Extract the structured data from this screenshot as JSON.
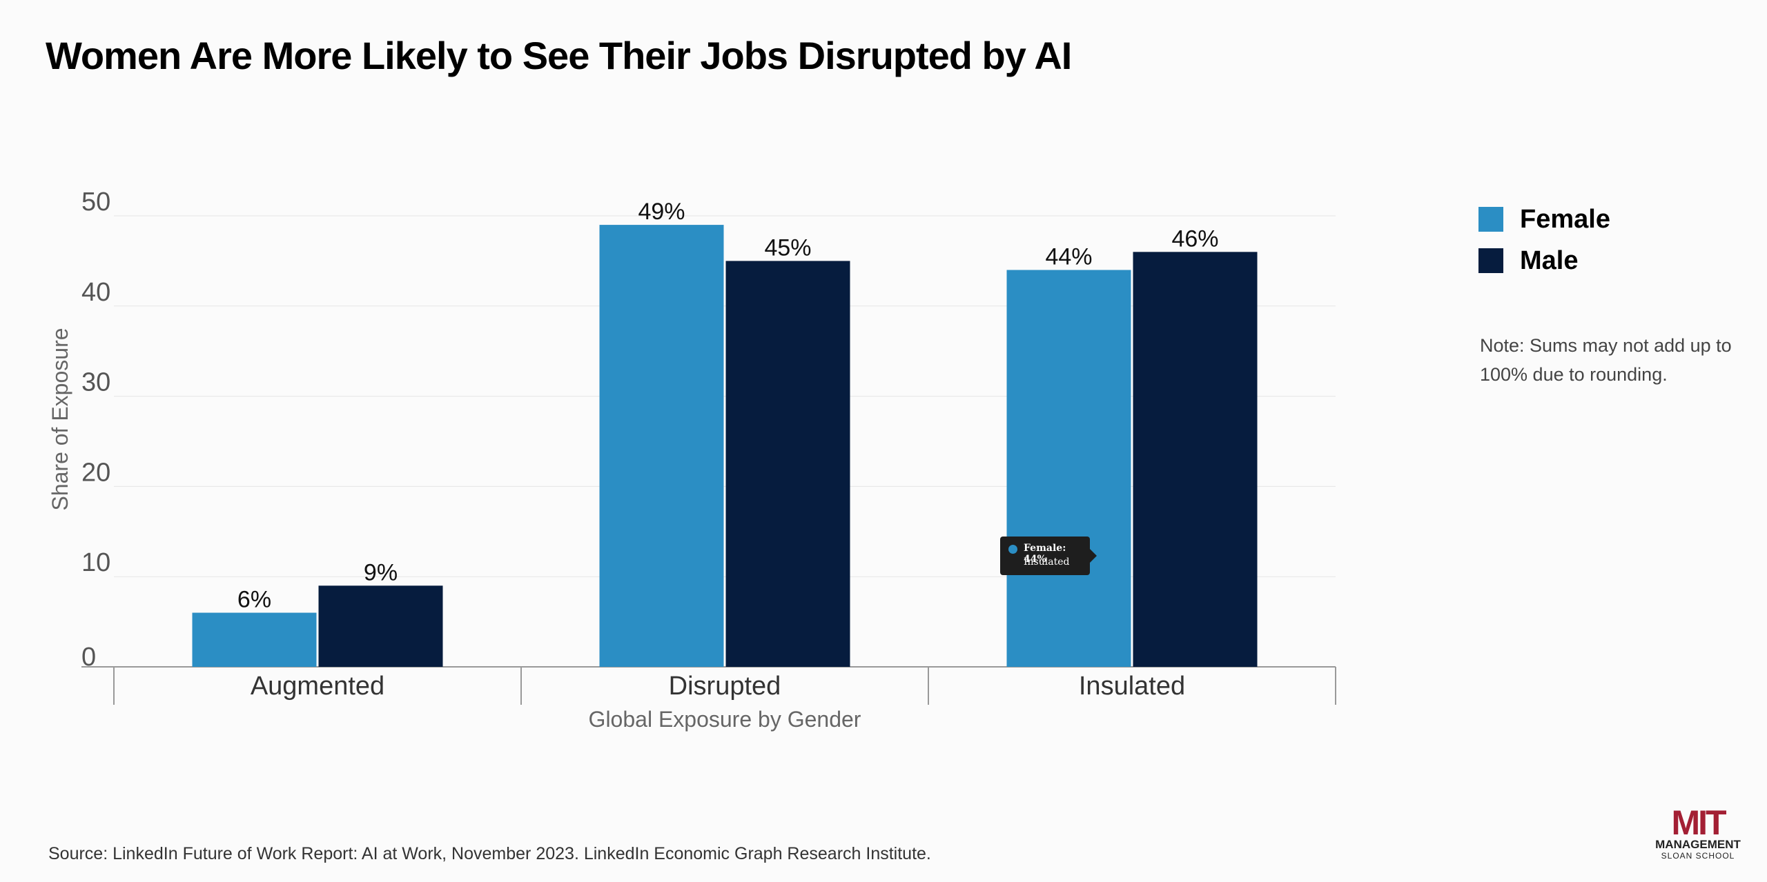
{
  "title": "Women Are More Likely to See Their Jobs Disrupted by AI",
  "chart_data": {
    "type": "bar",
    "categories": [
      "Augmented",
      "Disrupted",
      "Insulated"
    ],
    "series": [
      {
        "name": "Female",
        "values": [
          6,
          49,
          44
        ],
        "labels": [
          "6%",
          "49%",
          "44%"
        ],
        "color": "#2b8ec4"
      },
      {
        "name": "Male",
        "values": [
          9,
          45,
          46
        ],
        "labels": [
          "9%",
          "45%",
          "46%"
        ],
        "color": "#061c3e"
      }
    ],
    "xlabel": "Global Exposure by Gender",
    "ylabel": "Share of Exposure",
    "ylim": [
      0,
      50
    ],
    "yticks": [
      0,
      10,
      20,
      30,
      40,
      50
    ],
    "grid": true,
    "legend_position": "right"
  },
  "legend": {
    "items": [
      {
        "label": "Female",
        "color": "#2b8ec4"
      },
      {
        "label": "Male",
        "color": "#061c3e"
      }
    ]
  },
  "tooltip": {
    "line1": "Female: 44%",
    "line2": "Insulated",
    "color": "#2b8ec4"
  },
  "note": "Note: Sums may not add up to 100% due to rounding.",
  "source": "Source: LinkedIn Future of Work Report: AI at Work, November 2023. LinkedIn Economic Graph Research Institute.",
  "logo": {
    "mit": "MIT",
    "management": "MANAGEMENT",
    "sloan": "SLOAN SCHOOL"
  }
}
